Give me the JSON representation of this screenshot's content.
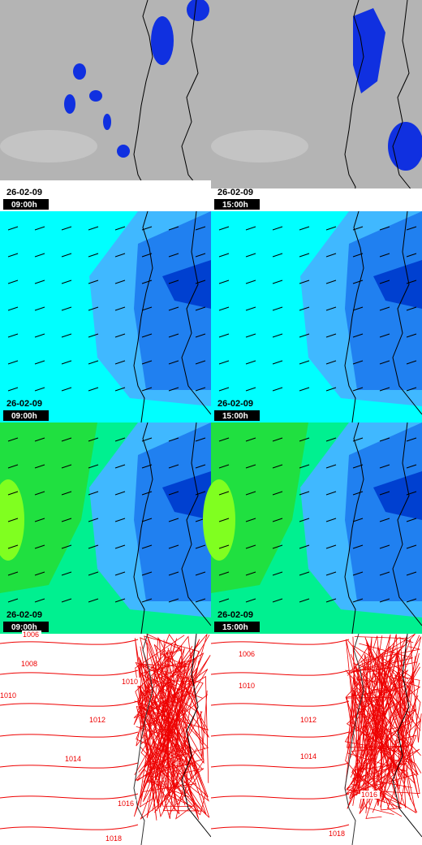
{
  "panels": [
    {
      "date": "26-02-09",
      "time": "09:00h"
    },
    {
      "date": "26-02-09",
      "time": "15:00h"
    },
    {
      "date": "26-02-09",
      "time": "09:00h"
    },
    {
      "date": "26-02-09",
      "time": "15:00h"
    },
    {
      "date": "26-02-09",
      "time": "09:00h"
    },
    {
      "date": "26-02-09",
      "time": "15:00h"
    }
  ],
  "isobars_left": [
    1006,
    1008,
    1010,
    1010,
    1012,
    1014,
    1016,
    1018
  ],
  "isobars_right": [
    1006,
    1010,
    1012,
    1014,
    1016,
    1018
  ]
}
